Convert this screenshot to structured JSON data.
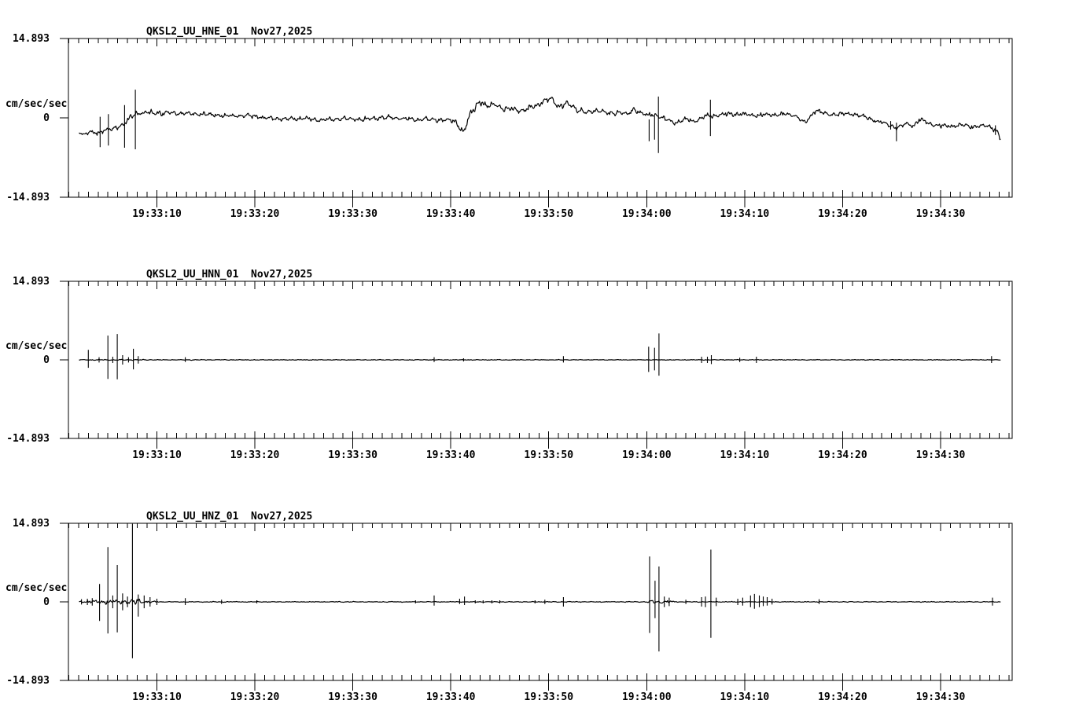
{
  "page": {
    "background": "#ffffff",
    "foreground": "#000000",
    "description": "Three-channel strong-motion seismogram strip chart (acceleration traces)"
  },
  "chart_data": {
    "type": "line",
    "kind": "seismogram-strip-chart",
    "grid": "off",
    "legend": "none",
    "t_unit": "seconds since 19:33:00",
    "time_axis": {
      "minor_step_s": 1,
      "major_step_s": 10,
      "visible_t_range": [
        0.97,
        97.3
      ],
      "ticks": [
        {
          "t": 10,
          "label": "19:33:10"
        },
        {
          "t": 20,
          "label": "19:33:20"
        },
        {
          "t": 30,
          "label": "19:33:30"
        },
        {
          "t": 40,
          "label": "19:33:40"
        },
        {
          "t": 50,
          "label": "19:33:50"
        },
        {
          "t": 60,
          "label": "19:34:00"
        },
        {
          "t": 70,
          "label": "19:34:10"
        },
        {
          "t": 80,
          "label": "19:34:20"
        },
        {
          "t": 90,
          "label": "19:34:30"
        }
      ]
    },
    "panels": [
      {
        "channel_id": "HNE",
        "title": "QKSL2_UU_HNE_01",
        "date": "Nov27,2025",
        "units_label": "cm/sec/sec",
        "y_top_label": "14.893",
        "y_zero_label": "0",
        "y_bottom_label": "-14.893",
        "ylim": [
          -14.893,
          14.893
        ],
        "trace_t_range": [
          2.05,
          96.2
        ],
        "baseline": [
          [
            2.05,
            -2.6
          ],
          [
            2.6,
            -3.1
          ],
          [
            3.2,
            -2.7
          ],
          [
            4,
            -2.8
          ],
          [
            4.6,
            -2.3
          ],
          [
            5.2,
            -2.2
          ],
          [
            5.9,
            -1.8
          ],
          [
            6.6,
            -1.2
          ],
          [
            7.0,
            -0.6
          ],
          [
            7.4,
            0.3
          ],
          [
            7.9,
            0.8
          ],
          [
            8.6,
            1.0
          ],
          [
            10,
            0.95
          ],
          [
            12,
            0.9
          ],
          [
            14,
            0.75
          ],
          [
            15.5,
            0.6
          ],
          [
            17,
            0.35
          ],
          [
            19,
            0.45
          ],
          [
            21,
            0.05
          ],
          [
            23,
            -0.3
          ],
          [
            25,
            -0.1
          ],
          [
            27,
            -0.45
          ],
          [
            29,
            -0.15
          ],
          [
            31,
            -0.3
          ],
          [
            33,
            0.1
          ],
          [
            35,
            -0.15
          ],
          [
            37,
            -0.35
          ],
          [
            39,
            -0.3
          ],
          [
            40.5,
            -0.7
          ],
          [
            41.3,
            -2.9
          ],
          [
            41.9,
            0.4
          ],
          [
            42.9,
            3.2
          ],
          [
            43.6,
            2.1
          ],
          [
            44.6,
            2.6
          ],
          [
            45.4,
            1.5
          ],
          [
            46.4,
            1.8
          ],
          [
            47.4,
            1.2
          ],
          [
            48.4,
            2.2
          ],
          [
            49.4,
            2.9
          ],
          [
            50.3,
            3.6
          ],
          [
            51.1,
            2.2
          ],
          [
            52,
            2.6
          ],
          [
            53,
            1.5
          ],
          [
            54,
            0.9
          ],
          [
            55,
            1.5
          ],
          [
            56,
            0.7
          ],
          [
            57,
            1.2
          ],
          [
            58,
            0.6
          ],
          [
            58.7,
            1.7
          ],
          [
            59.5,
            0.8
          ],
          [
            60.2,
            0.5
          ],
          [
            61,
            0.6
          ],
          [
            62,
            -0.4
          ],
          [
            63,
            -0.85
          ],
          [
            64,
            -0.3
          ],
          [
            65,
            -0.6
          ],
          [
            66,
            0.3
          ],
          [
            67.5,
            0.6
          ],
          [
            69,
            0.75
          ],
          [
            71,
            0.45
          ],
          [
            73,
            0.7
          ],
          [
            75,
            0.6
          ],
          [
            76.2,
            -0.9
          ],
          [
            77.3,
            1.5
          ],
          [
            78.5,
            0.6
          ],
          [
            80,
            0.75
          ],
          [
            81.5,
            0.6
          ],
          [
            82.5,
            0.0
          ],
          [
            83.5,
            -0.6
          ],
          [
            84.5,
            -1.2
          ],
          [
            85.5,
            -1.8
          ],
          [
            86.5,
            -1.2
          ],
          [
            87.3,
            -1.5
          ],
          [
            87.8,
            -0.3
          ],
          [
            88.3,
            -0.6
          ],
          [
            89,
            -1.2
          ],
          [
            90.5,
            -1.6
          ],
          [
            92,
            -1.35
          ],
          [
            93.5,
            -1.65
          ],
          [
            94.5,
            -1.5
          ],
          [
            95.3,
            -1.8
          ],
          [
            95.9,
            -2.9
          ],
          [
            96.2,
            -4.4
          ]
        ],
        "noise_envelope": [
          [
            2.05,
            0.33
          ],
          [
            4,
            0.45
          ],
          [
            8,
            0.5
          ],
          [
            15,
            0.45
          ],
          [
            40,
            0.45
          ],
          [
            42,
            0.6
          ],
          [
            47,
            0.6
          ],
          [
            52,
            0.6
          ],
          [
            58,
            0.5
          ],
          [
            66,
            0.45
          ],
          [
            82,
            0.4
          ],
          [
            90,
            0.45
          ],
          [
            96.2,
            0.45
          ]
        ],
        "spikes": [
          [
            4.2,
            0.2,
            -5.5
          ],
          [
            5.05,
            0.7,
            -5.2
          ],
          [
            6.7,
            2.4,
            -5.6
          ],
          [
            7.8,
            5.3,
            -5.9
          ],
          [
            60.25,
            -0.3,
            -4.4
          ],
          [
            60.8,
            0.3,
            -4.1
          ],
          [
            61.2,
            4.0,
            -6.6
          ],
          [
            66.5,
            3.4,
            -3.4
          ],
          [
            84.9,
            -0.6,
            -2.2
          ],
          [
            85.5,
            -0.9,
            -4.4
          ],
          [
            95.6,
            -1.4,
            -3.2
          ]
        ]
      },
      {
        "channel_id": "HNN",
        "title": "QKSL2_UU_HNN_01",
        "date": "Nov27,2025",
        "units_label": "cm/sec/sec",
        "y_top_label": "14.893",
        "y_zero_label": "0",
        "y_bottom_label": "-14.893",
        "ylim": [
          -14.893,
          14.893
        ],
        "trace_t_range": [
          2.05,
          96.2
        ],
        "baseline": [
          [
            2.05,
            0
          ],
          [
            96.2,
            0
          ]
        ],
        "noise_envelope": [
          [
            2.05,
            0.06
          ],
          [
            2.5,
            0.1
          ],
          [
            9,
            0.1
          ],
          [
            9.5,
            0.06
          ],
          [
            96.2,
            0.06
          ]
        ],
        "spikes": [
          [
            3.0,
            1.9,
            -1.5
          ],
          [
            4.1,
            0.5,
            -0.5
          ],
          [
            5.0,
            4.6,
            -3.6
          ],
          [
            5.5,
            0.6,
            -0.6
          ],
          [
            5.95,
            4.9,
            -3.7
          ],
          [
            6.5,
            0.9,
            -0.9
          ],
          [
            7.1,
            0.5,
            -0.5
          ],
          [
            7.6,
            2.1,
            -1.8
          ],
          [
            8.1,
            0.7,
            -0.7
          ],
          [
            12.9,
            0.5,
            -0.4
          ],
          [
            38.3,
            0.5,
            -0.4
          ],
          [
            41.3,
            0.3,
            -0.3
          ],
          [
            51.5,
            0.7,
            -0.5
          ],
          [
            60.2,
            2.5,
            -2.3
          ],
          [
            60.8,
            2.3,
            -2.0
          ],
          [
            61.25,
            5.0,
            -3.0
          ],
          [
            65.6,
            0.6,
            -0.6
          ],
          [
            66.2,
            0.6,
            -0.6
          ],
          [
            66.6,
            0.9,
            -0.8
          ],
          [
            69.5,
            0.4,
            -0.4
          ],
          [
            71.2,
            0.6,
            -0.6
          ],
          [
            95.2,
            0.7,
            -0.6
          ]
        ]
      },
      {
        "channel_id": "HNZ",
        "title": "QKSL2_UU_HNZ_01",
        "date": "Nov27,2025",
        "units_label": "cm/sec/sec",
        "y_top_label": "14.893",
        "y_zero_label": "0",
        "y_bottom_label": "-14.893",
        "ylim": [
          -14.893,
          14.893
        ],
        "trace_t_range": [
          2.05,
          96.2
        ],
        "baseline": [
          [
            2.05,
            0
          ],
          [
            96.2,
            0
          ]
        ],
        "noise_envelope": [
          [
            2.05,
            0.15
          ],
          [
            3,
            0.35
          ],
          [
            8,
            0.5
          ],
          [
            9.5,
            0.2
          ],
          [
            10.5,
            0.07
          ],
          [
            59.9,
            0.07
          ],
          [
            60.3,
            0.35
          ],
          [
            62.4,
            0.3
          ],
          [
            63.2,
            0.07
          ],
          [
            96.2,
            0.07
          ]
        ],
        "spikes": [
          [
            2.3,
            0.5,
            -0.5
          ],
          [
            2.9,
            0.6,
            -0.6
          ],
          [
            3.4,
            0.7,
            -0.7
          ],
          [
            4.15,
            3.4,
            -3.6
          ],
          [
            5.0,
            10.4,
            -6.0
          ],
          [
            5.5,
            1.2,
            -1.2
          ],
          [
            5.95,
            7.0,
            -5.8
          ],
          [
            6.5,
            1.6,
            -1.6
          ],
          [
            7.0,
            1.0,
            -1.0
          ],
          [
            7.5,
            14.8,
            -10.7
          ],
          [
            8.1,
            1.4,
            -2.8
          ],
          [
            8.7,
            1.2,
            -1.2
          ],
          [
            9.3,
            0.9,
            -0.9
          ],
          [
            10.0,
            0.6,
            -0.6
          ],
          [
            12.9,
            0.7,
            -0.6
          ],
          [
            16.6,
            0.4,
            -0.4
          ],
          [
            20.2,
            0.3,
            -0.3
          ],
          [
            36.4,
            0.3,
            -0.3
          ],
          [
            38.3,
            1.2,
            -0.7
          ],
          [
            40.9,
            0.6,
            -0.4
          ],
          [
            41.4,
            1.0,
            -0.6
          ],
          [
            42.5,
            0.3,
            -0.3
          ],
          [
            43.3,
            0.3,
            -0.3
          ],
          [
            44.2,
            0.3,
            -0.3
          ],
          [
            45.0,
            0.3,
            -0.3
          ],
          [
            48.6,
            0.3,
            -0.3
          ],
          [
            49.6,
            0.4,
            -0.4
          ],
          [
            51.5,
            0.9,
            -0.9
          ],
          [
            60.3,
            8.6,
            -5.9
          ],
          [
            60.85,
            4.0,
            -3.1
          ],
          [
            61.25,
            6.7,
            -9.4
          ],
          [
            61.8,
            1.0,
            -1.0
          ],
          [
            62.3,
            0.8,
            -0.8
          ],
          [
            64.0,
            0.4,
            -0.4
          ],
          [
            65.6,
            0.9,
            -0.9
          ],
          [
            66.0,
            1.0,
            -1.0
          ],
          [
            66.55,
            9.9,
            -6.8
          ],
          [
            67.1,
            0.8,
            -0.8
          ],
          [
            69.3,
            0.6,
            -0.6
          ],
          [
            69.8,
            0.8,
            -0.7
          ],
          [
            70.6,
            1.2,
            -1.0
          ],
          [
            71.0,
            1.5,
            -1.3
          ],
          [
            71.5,
            1.2,
            -1.0
          ],
          [
            71.9,
            1.0,
            -0.8
          ],
          [
            72.3,
            0.9,
            -0.7
          ],
          [
            72.8,
            0.6,
            -0.5
          ],
          [
            77.6,
            0.5,
            -0.4
          ],
          [
            95.3,
            0.8,
            -0.7
          ]
        ]
      }
    ]
  }
}
